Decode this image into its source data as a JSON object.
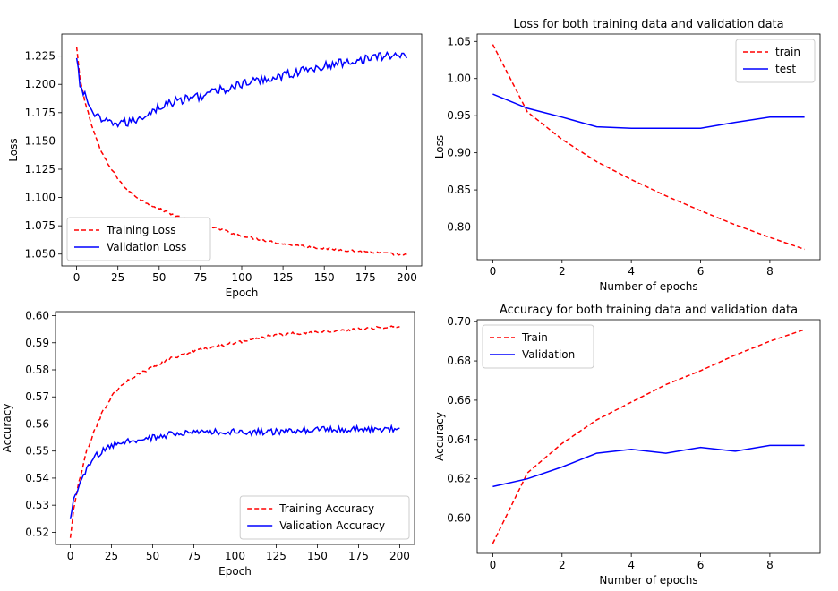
{
  "chart_data": [
    {
      "type": "line",
      "title": "",
      "xlabel": "Epoch",
      "ylabel": "Loss",
      "xlim": [
        -9,
        209
      ],
      "ylim": [
        1.0395,
        1.2445
      ],
      "xticks": [
        0,
        25,
        50,
        75,
        100,
        125,
        150,
        175,
        200
      ],
      "yticks": [
        1.05,
        1.075,
        1.1,
        1.125,
        1.15,
        1.175,
        1.2,
        1.225
      ],
      "ytick_labels": [
        "1.050",
        "1.075",
        "1.100",
        "1.125",
        "1.150",
        "1.175",
        "1.200",
        "1.225"
      ],
      "grid": false,
      "legend_position": "lower-left",
      "series": [
        {
          "name": "Training Loss",
          "color": "#ff0000",
          "dash": "dashed",
          "noise": 0.001,
          "x": [
            0,
            2,
            5,
            10,
            15,
            20,
            25,
            30,
            40,
            50,
            60,
            75,
            100,
            125,
            150,
            175,
            200
          ],
          "y": [
            1.233,
            1.205,
            1.185,
            1.16,
            1.14,
            1.127,
            1.117,
            1.107,
            1.097,
            1.09,
            1.084,
            1.077,
            1.066,
            1.059,
            1.055,
            1.052,
            1.049
          ]
        },
        {
          "name": "Validation Loss",
          "color": "#0000ff",
          "dash": "solid",
          "noise": 0.004,
          "x": [
            0,
            2,
            5,
            10,
            15,
            20,
            25,
            30,
            35,
            40,
            50,
            60,
            75,
            100,
            125,
            150,
            175,
            200
          ],
          "y": [
            1.222,
            1.2,
            1.19,
            1.175,
            1.167,
            1.166,
            1.166,
            1.166,
            1.168,
            1.172,
            1.18,
            1.185,
            1.19,
            1.2,
            1.208,
            1.216,
            1.223,
            1.227
          ]
        }
      ]
    },
    {
      "type": "line",
      "title": "Loss for both training data and validation data",
      "xlabel": "Number of epochs",
      "ylabel": "Loss",
      "xlim": [
        -0.45,
        9.45
      ],
      "ylim": [
        0.756,
        1.06
      ],
      "xticks": [
        0,
        2,
        4,
        6,
        8
      ],
      "yticks": [
        0.8,
        0.85,
        0.9,
        0.95,
        1.0,
        1.05
      ],
      "ytick_labels": [
        "0.80",
        "0.85",
        "0.90",
        "0.95",
        "1.00",
        "1.05"
      ],
      "grid": false,
      "legend_position": "top-right",
      "series": [
        {
          "name": "train",
          "color": "#ff0000",
          "dash": "dashed",
          "noise": 0,
          "x": [
            0,
            1,
            2,
            3,
            4,
            5,
            6,
            7,
            8,
            9
          ],
          "y": [
            1.046,
            0.955,
            0.918,
            0.888,
            0.864,
            0.842,
            0.822,
            0.803,
            0.786,
            0.77
          ]
        },
        {
          "name": "test",
          "color": "#0000ff",
          "dash": "solid",
          "noise": 0,
          "x": [
            0,
            1,
            2,
            3,
            4,
            5,
            6,
            7,
            8,
            9
          ],
          "y": [
            0.979,
            0.96,
            0.948,
            0.935,
            0.933,
            0.933,
            0.933,
            0.941,
            0.948,
            0.948
          ]
        }
      ]
    },
    {
      "type": "line",
      "title": "",
      "xlabel": "Epoch",
      "ylabel": "Accuracy",
      "xlim": [
        -9,
        209
      ],
      "ylim": [
        0.5155,
        0.6015
      ],
      "xticks": [
        0,
        25,
        50,
        75,
        100,
        125,
        150,
        175,
        200
      ],
      "yticks": [
        0.52,
        0.53,
        0.54,
        0.55,
        0.56,
        0.57,
        0.58,
        0.59,
        0.6
      ],
      "ytick_labels": [
        "0.52",
        "0.53",
        "0.54",
        "0.55",
        "0.56",
        "0.57",
        "0.58",
        "0.59",
        "0.60"
      ],
      "grid": false,
      "legend_position": "lower-right",
      "series": [
        {
          "name": "Training Accuracy",
          "color": "#ff0000",
          "dash": "dashed",
          "noise": 0.0005,
          "x": [
            0,
            2,
            5,
            10,
            15,
            20,
            25,
            30,
            40,
            50,
            60,
            75,
            100,
            125,
            150,
            175,
            200
          ],
          "y": [
            0.518,
            0.528,
            0.538,
            0.55,
            0.558,
            0.565,
            0.57,
            0.574,
            0.578,
            0.581,
            0.584,
            0.587,
            0.59,
            0.593,
            0.594,
            0.595,
            0.596
          ]
        },
        {
          "name": "Validation Accuracy",
          "color": "#0000ff",
          "dash": "solid",
          "noise": 0.0012,
          "x": [
            0,
            2,
            5,
            10,
            15,
            20,
            25,
            30,
            40,
            50,
            60,
            75,
            100,
            125,
            150,
            175,
            200
          ],
          "y": [
            0.525,
            0.532,
            0.537,
            0.543,
            0.548,
            0.55,
            0.552,
            0.553,
            0.554,
            0.555,
            0.556,
            0.557,
            0.557,
            0.557,
            0.558,
            0.558,
            0.558
          ]
        }
      ]
    },
    {
      "type": "line",
      "title": "Accuracy for both training data and validation data",
      "xlabel": "Number of epochs",
      "ylabel": "Accuracy",
      "xlim": [
        -0.45,
        9.45
      ],
      "ylim": [
        0.582,
        0.701
      ],
      "xticks": [
        0,
        2,
        4,
        6,
        8
      ],
      "yticks": [
        0.6,
        0.62,
        0.64,
        0.66,
        0.68,
        0.7
      ],
      "ytick_labels": [
        "0.60",
        "0.62",
        "0.64",
        "0.66",
        "0.68",
        "0.70"
      ],
      "grid": false,
      "legend_position": "top-left",
      "series": [
        {
          "name": "Train",
          "color": "#ff0000",
          "dash": "dashed",
          "noise": 0,
          "x": [
            0,
            1,
            2,
            3,
            4,
            5,
            6,
            7,
            8,
            9
          ],
          "y": [
            0.587,
            0.623,
            0.638,
            0.65,
            0.659,
            0.668,
            0.675,
            0.683,
            0.69,
            0.696
          ]
        },
        {
          "name": "Validation",
          "color": "#0000ff",
          "dash": "solid",
          "noise": 0,
          "x": [
            0,
            1,
            2,
            3,
            4,
            5,
            6,
            7,
            8,
            9
          ],
          "y": [
            0.616,
            0.62,
            0.626,
            0.633,
            0.635,
            0.633,
            0.636,
            0.634,
            0.637,
            0.637
          ]
        }
      ]
    }
  ]
}
